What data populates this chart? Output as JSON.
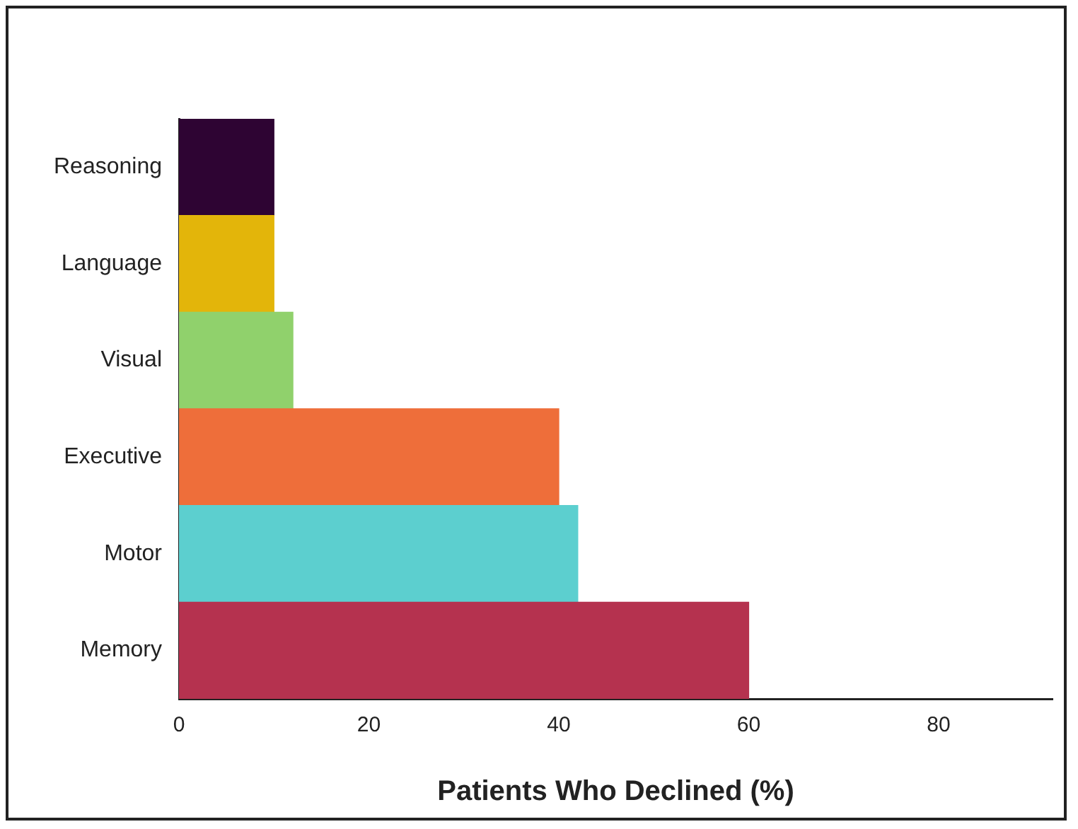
{
  "chart_data": {
    "type": "bar",
    "orientation": "horizontal",
    "xlabel": "Patients Who Declined (%)",
    "categories": [
      "Reasoning",
      "Language",
      "Visual",
      "Executive",
      "Motor",
      "Memory"
    ],
    "values": [
      10,
      10,
      12,
      40,
      42,
      60
    ],
    "colors": [
      "#2e0433",
      "#e3b50a",
      "#90d16c",
      "#ee6e3a",
      "#5ccfcf",
      "#b5324f"
    ],
    "xlim": [
      0,
      92
    ],
    "xticks": [
      0,
      20,
      40,
      60,
      80
    ],
    "grid": false,
    "legend": false
  }
}
